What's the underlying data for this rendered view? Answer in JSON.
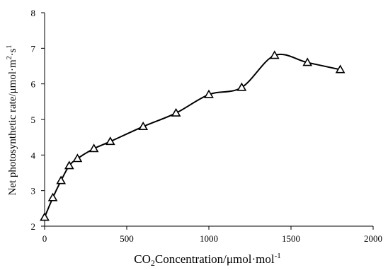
{
  "chart_data": {
    "type": "line",
    "title": "",
    "xlabel_parts": {
      "main": "CO",
      "sub": "2",
      "rest": "Concentration/μmol·mol",
      "sup": "-1"
    },
    "ylabel_parts": {
      "main": "Net photosynthetic rate/μmol·m",
      "sup1": "2",
      "mid": "·s",
      "sup2": "1"
    },
    "xlim": [
      0,
      2000
    ],
    "ylim": [
      2,
      8
    ],
    "x_ticks": [
      0,
      500,
      1000,
      1500,
      2000
    ],
    "y_ticks": [
      2,
      3,
      4,
      5,
      6,
      7,
      8
    ],
    "grid": false,
    "legend": "none",
    "marker": "open-triangle",
    "line_style": "smooth",
    "colors": {
      "line": "#000000",
      "marker_stroke": "#000000",
      "marker_fill": "#ffffff"
    },
    "series": [
      {
        "x": [
          0,
          50,
          100,
          150,
          200,
          300,
          400,
          600,
          800,
          1000,
          1200,
          1400,
          1600,
          1800
        ],
        "y": [
          2.25,
          2.8,
          3.28,
          3.7,
          3.9,
          4.18,
          4.38,
          4.8,
          5.18,
          5.7,
          5.9,
          6.8,
          6.6,
          6.4
        ]
      }
    ]
  }
}
